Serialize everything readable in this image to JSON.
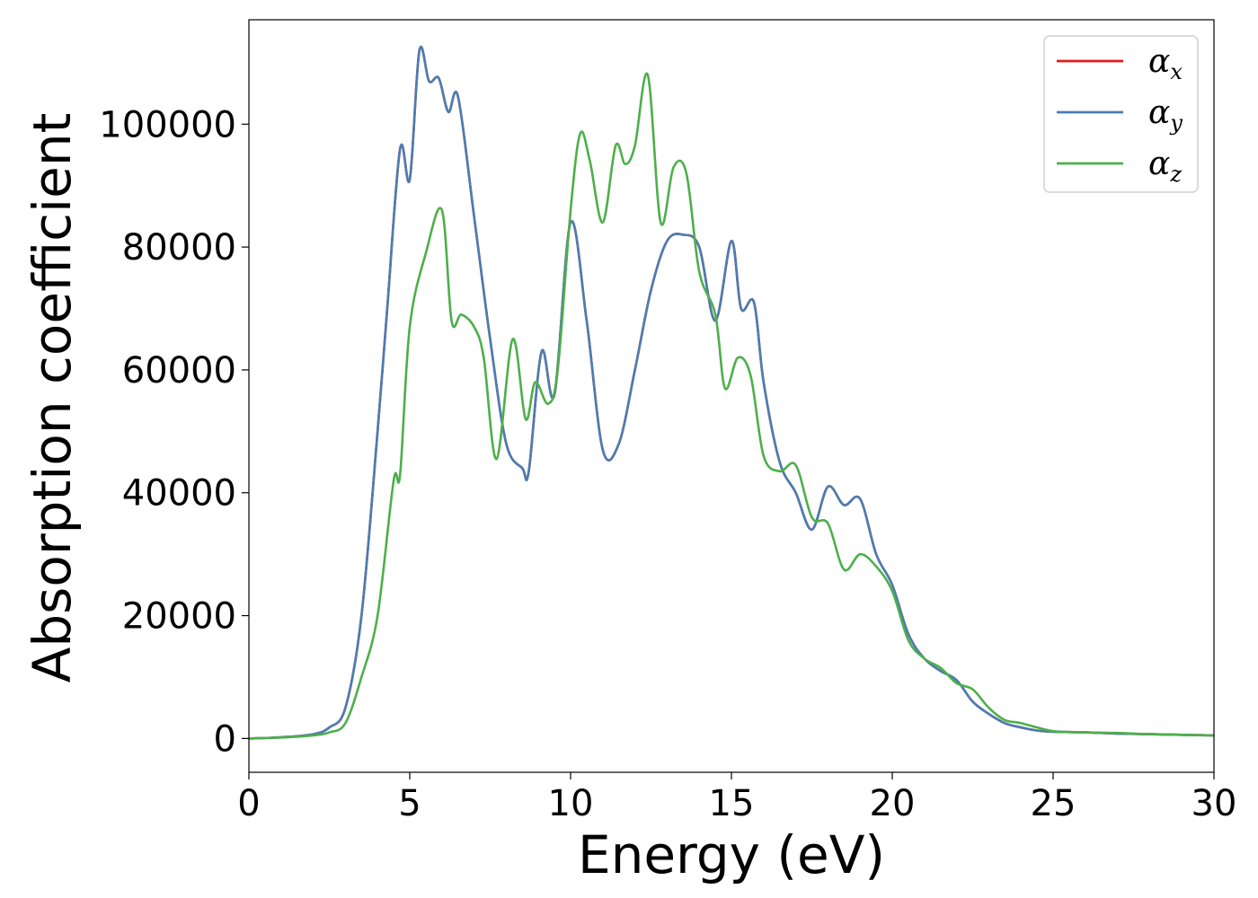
{
  "chart_data": {
    "type": "line",
    "xlabel": "Energy (eV)",
    "ylabel": "Absorption coefficient",
    "xlim": [
      0,
      30
    ],
    "ylim": [
      -5500,
      117000
    ],
    "xticks": [
      0,
      5,
      10,
      15,
      20,
      25,
      30
    ],
    "yticks": [
      0,
      20000,
      40000,
      60000,
      80000,
      100000
    ],
    "grid": false,
    "legend_position": "top-right",
    "series": [
      {
        "name": "α",
        "subscript": "x",
        "color": "#e41a1c",
        "x": [
          0,
          1,
          2,
          2.5,
          3,
          3.5,
          4,
          4.3,
          4.7,
          5,
          5.3,
          5.6,
          5.9,
          6.2,
          6.5,
          7,
          7.5,
          8,
          8.5,
          8.7,
          9.1,
          9.5,
          10,
          10.5,
          11,
          11.5,
          12,
          12.5,
          13,
          13.5,
          14,
          14.5,
          15,
          15.3,
          15.7,
          16,
          16.5,
          17,
          17.5,
          18,
          18.5,
          19,
          19.5,
          20,
          20.5,
          21,
          21.5,
          22,
          22.5,
          23,
          23.5,
          24,
          24.5,
          25,
          26,
          27,
          28,
          29,
          30
        ],
        "y": [
          0,
          200,
          700,
          1800,
          5000,
          20000,
          50000,
          70000,
          96000,
          91000,
          112000,
          107000,
          107500,
          102000,
          104500,
          85000,
          65000,
          48000,
          44000,
          43500,
          63000,
          56000,
          84000,
          68000,
          47000,
          48000,
          60000,
          73000,
          81000,
          82000,
          80000,
          68000,
          81000,
          70000,
          71000,
          58000,
          45000,
          40000,
          34000,
          41000,
          38000,
          39000,
          30000,
          25000,
          17000,
          13000,
          11000,
          9500,
          6000,
          4000,
          2500,
          1800,
          1300,
          1100,
          1000,
          800,
          700,
          600,
          500
        ]
      },
      {
        "name": "α",
        "subscript": "y",
        "color": "#4a7db3",
        "x": [
          0,
          1,
          2,
          2.5,
          3,
          3.5,
          4,
          4.3,
          4.7,
          5,
          5.3,
          5.6,
          5.9,
          6.2,
          6.5,
          7,
          7.5,
          8,
          8.5,
          8.7,
          9.1,
          9.5,
          10,
          10.5,
          11,
          11.5,
          12,
          12.5,
          13,
          13.5,
          14,
          14.5,
          15,
          15.3,
          15.7,
          16,
          16.5,
          17,
          17.5,
          18,
          18.5,
          19,
          19.5,
          20,
          20.5,
          21,
          21.5,
          22,
          22.5,
          23,
          23.5,
          24,
          24.5,
          25,
          26,
          27,
          28,
          29,
          30
        ],
        "y": [
          0,
          200,
          700,
          1800,
          5000,
          20000,
          50000,
          70000,
          96000,
          91000,
          112000,
          107000,
          107500,
          102000,
          104500,
          85000,
          65000,
          48000,
          44000,
          43500,
          63000,
          56000,
          84000,
          68000,
          47000,
          48000,
          60000,
          73000,
          81000,
          82000,
          80000,
          68000,
          81000,
          70000,
          71000,
          58000,
          45000,
          40000,
          34000,
          41000,
          38000,
          39000,
          30000,
          25000,
          17000,
          13000,
          11000,
          9500,
          6000,
          4000,
          2500,
          1800,
          1300,
          1100,
          1000,
          800,
          700,
          600,
          500
        ]
      },
      {
        "name": "α",
        "subscript": "z",
        "color": "#4daf4a",
        "x": [
          0,
          1,
          2,
          2.5,
          3,
          3.5,
          4,
          4.5,
          4.7,
          5,
          5.5,
          6,
          6.3,
          6.6,
          7,
          7.3,
          7.7,
          8.2,
          8.6,
          8.9,
          9.3,
          9.6,
          10,
          10.3,
          10.6,
          11,
          11.4,
          11.7,
          12,
          12.4,
          12.8,
          13.2,
          13.6,
          14,
          14.5,
          14.8,
          15.2,
          15.6,
          16,
          16.5,
          17,
          17.5,
          18,
          18.5,
          19,
          19.5,
          20,
          20.5,
          21,
          21.5,
          22,
          22.5,
          23,
          23.5,
          24,
          25,
          26,
          27,
          28,
          29,
          30
        ],
        "y": [
          0,
          150,
          500,
          1000,
          2500,
          10000,
          20000,
          42000,
          43000,
          67000,
          79000,
          86000,
          68000,
          69000,
          67000,
          62000,
          45500,
          65000,
          52000,
          58000,
          54500,
          60000,
          86000,
          98500,
          94000,
          84000,
          96500,
          93500,
          96500,
          108000,
          84000,
          93000,
          92000,
          76000,
          69000,
          57000,
          62000,
          59000,
          46000,
          43500,
          44500,
          36000,
          35000,
          27500,
          30000,
          28000,
          24000,
          16000,
          13000,
          11500,
          9000,
          8000,
          5000,
          3000,
          2500,
          1200,
          1000,
          900,
          700,
          600,
          500
        ]
      }
    ]
  }
}
